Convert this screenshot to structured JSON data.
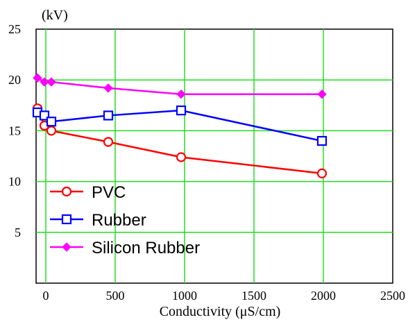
{
  "chart_data": {
    "type": "line",
    "xlabel": "Conductivity (μS/cm)",
    "ylabel": "(kV)",
    "xlim": [
      -70,
      2500
    ],
    "ylim": [
      0,
      25
    ],
    "xticks": [
      0,
      500,
      1000,
      1500,
      2000,
      2500
    ],
    "yticks": [
      5,
      10,
      15,
      20,
      25
    ],
    "xtick_labels": [
      "0",
      "500",
      "1000",
      "1500",
      "2000",
      "2500"
    ],
    "ytick_labels": [
      "5",
      "10",
      "15",
      "20",
      "25"
    ],
    "grid": true,
    "legend_position": "bottom-left",
    "series": [
      {
        "name": "PVC",
        "color": "#ff0000",
        "marker": "circle",
        "x": [
          -60,
          -10,
          40,
          450,
          975,
          1990
        ],
        "y": [
          17.2,
          15.5,
          15.0,
          13.9,
          12.4,
          10.8
        ]
      },
      {
        "name": "Rubber",
        "color": "#0000ff",
        "marker": "square",
        "x": [
          -60,
          -10,
          40,
          450,
          975,
          1990
        ],
        "y": [
          16.8,
          16.5,
          15.9,
          16.5,
          17.0,
          14.0
        ]
      },
      {
        "name": "Silicon Rubber",
        "color": "#ff00ff",
        "marker": "diamond",
        "x": [
          -60,
          -10,
          40,
          450,
          975,
          1990
        ],
        "y": [
          20.2,
          19.8,
          19.8,
          19.2,
          18.6,
          18.6
        ]
      }
    ]
  }
}
